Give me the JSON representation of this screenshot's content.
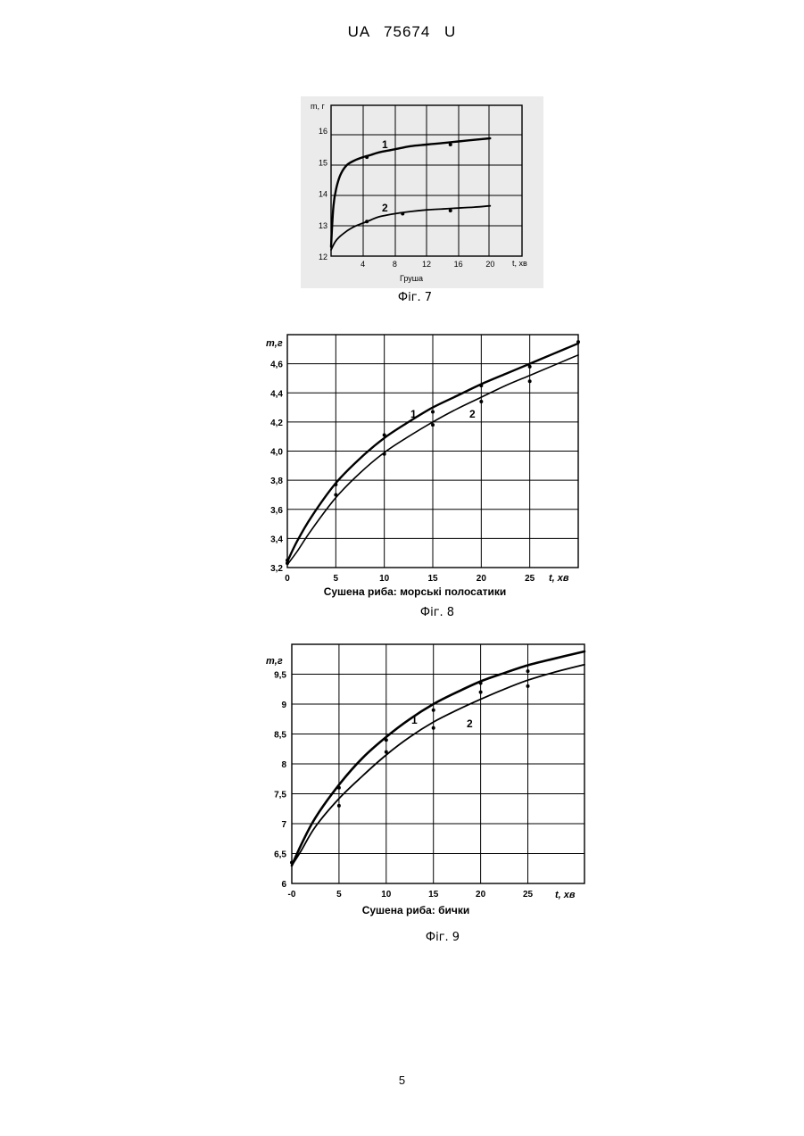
{
  "page": {
    "header": "UA 75674 U",
    "page_number": "5"
  },
  "chart_data": [
    {
      "id": "fig7",
      "type": "line",
      "fig_label": "Фіг. 7",
      "caption": "Груша",
      "xlabel": "t, хв",
      "ylabel": "m, г",
      "xlim": [
        0,
        24
      ],
      "ylim": [
        12,
        16.8
      ],
      "x_ticks": [
        4,
        8,
        12,
        16,
        20
      ],
      "y_ticks": [
        12,
        13,
        14,
        15,
        16
      ],
      "grid": true,
      "series": [
        {
          "name": "1",
          "x": [
            0,
            0.3,
            0.7,
            1.2,
            2,
            3,
            4,
            5,
            6,
            8,
            10,
            12,
            14,
            16,
            18,
            20
          ],
          "values": [
            12.3,
            13.6,
            14.2,
            14.6,
            14.9,
            15.05,
            15.15,
            15.22,
            15.3,
            15.4,
            15.5,
            15.55,
            15.6,
            15.65,
            15.7,
            15.75
          ],
          "points_x": [
            4.5,
            15
          ],
          "points_y": [
            15.15,
            15.55
          ]
        },
        {
          "name": "2",
          "x": [
            0,
            0.5,
            1,
            2,
            3,
            4,
            5,
            6,
            8,
            10,
            12,
            14,
            16,
            18,
            20
          ],
          "values": [
            12.2,
            12.45,
            12.6,
            12.8,
            12.95,
            13.05,
            13.15,
            13.25,
            13.35,
            13.42,
            13.47,
            13.5,
            13.53,
            13.56,
            13.6
          ],
          "points_x": [
            4.5,
            9,
            15
          ],
          "points_y": [
            13.1,
            13.35,
            13.45
          ]
        }
      ]
    },
    {
      "id": "fig8",
      "type": "line",
      "fig_label": "Фіг. 8",
      "caption": "Сушена риба: морські полосатики",
      "xlabel": "t, хв",
      "ylabel": "m,г",
      "xlim": [
        0,
        30
      ],
      "ylim": [
        3.2,
        4.8
      ],
      "x_ticks": [
        0,
        5,
        10,
        15,
        20,
        25
      ],
      "x_tick_labels": [
        "0",
        "5",
        "10",
        "15",
        "20",
        "25"
      ],
      "y_ticks": [
        3.2,
        3.4,
        3.6,
        3.8,
        4.0,
        4.2,
        4.4,
        4.6
      ],
      "y_tick_labels": [
        "3,2",
        "3,4",
        "3,6",
        "3,8",
        "4,0",
        "4,2",
        "4,4",
        "4,6"
      ],
      "grid": true,
      "series": [
        {
          "name": "1",
          "x": [
            0,
            1,
            2.5,
            5,
            7.5,
            10,
            12.5,
            15,
            17.5,
            20,
            22.5,
            25,
            27.5,
            30
          ],
          "values": [
            3.24,
            3.38,
            3.55,
            3.78,
            3.95,
            4.09,
            4.2,
            4.3,
            4.38,
            4.46,
            4.53,
            4.6,
            4.67,
            4.74
          ],
          "points_x": [
            0,
            5,
            10,
            15,
            20,
            25,
            30
          ],
          "points_y": [
            3.25,
            3.77,
            4.11,
            4.27,
            4.45,
            4.58,
            4.75
          ]
        },
        {
          "name": "2",
          "x": [
            0,
            1,
            2.5,
            5,
            7.5,
            10,
            12.5,
            15,
            17.5,
            20,
            22.5,
            25,
            27.5,
            30
          ],
          "values": [
            3.22,
            3.31,
            3.46,
            3.68,
            3.85,
            3.99,
            4.1,
            4.2,
            4.29,
            4.37,
            4.45,
            4.52,
            4.59,
            4.66
          ],
          "points_x": [
            0,
            5,
            10,
            15,
            20,
            25
          ],
          "points_y": [
            3.23,
            3.7,
            3.98,
            4.18,
            4.34,
            4.48
          ]
        }
      ]
    },
    {
      "id": "fig9",
      "type": "line",
      "fig_label": "Фіг. 9",
      "caption": "Сушена риба: бички",
      "xlabel": "t, хв",
      "ylabel": "m,г",
      "xlim": [
        0,
        31
      ],
      "ylim": [
        6,
        10
      ],
      "x_ticks": [
        0,
        5,
        10,
        15,
        20,
        25
      ],
      "x_tick_labels": [
        "-0",
        "5",
        "10",
        "15",
        "20",
        "25"
      ],
      "y_ticks": [
        6,
        6.5,
        7,
        7.5,
        8,
        8.5,
        9,
        9.5
      ],
      "y_tick_labels": [
        "6",
        "6,5",
        "7",
        "7,5",
        "8",
        "8,5",
        "9",
        "9,5"
      ],
      "grid": true,
      "series": [
        {
          "name": "1",
          "x": [
            0,
            1,
            2.5,
            5,
            7.5,
            10,
            12.5,
            15,
            17.5,
            20,
            22.5,
            25,
            27.5,
            31
          ],
          "values": [
            6.3,
            6.65,
            7.1,
            7.65,
            8.1,
            8.45,
            8.75,
            9.0,
            9.2,
            9.38,
            9.52,
            9.65,
            9.75,
            9.88
          ],
          "points_x": [
            0,
            5,
            10,
            15,
            20,
            25
          ],
          "points_y": [
            6.35,
            7.6,
            8.4,
            8.9,
            9.35,
            9.55
          ]
        },
        {
          "name": "2",
          "x": [
            0,
            1,
            2.5,
            5,
            7.5,
            10,
            12.5,
            15,
            17.5,
            20,
            22.5,
            25,
            27.5,
            31
          ],
          "values": [
            6.3,
            6.55,
            6.95,
            7.42,
            7.8,
            8.15,
            8.45,
            8.7,
            8.9,
            9.08,
            9.25,
            9.4,
            9.52,
            9.66
          ],
          "points_x": [
            5,
            10,
            15,
            20,
            25
          ],
          "points_y": [
            7.3,
            8.2,
            8.6,
            9.2,
            9.3
          ]
        }
      ]
    }
  ]
}
